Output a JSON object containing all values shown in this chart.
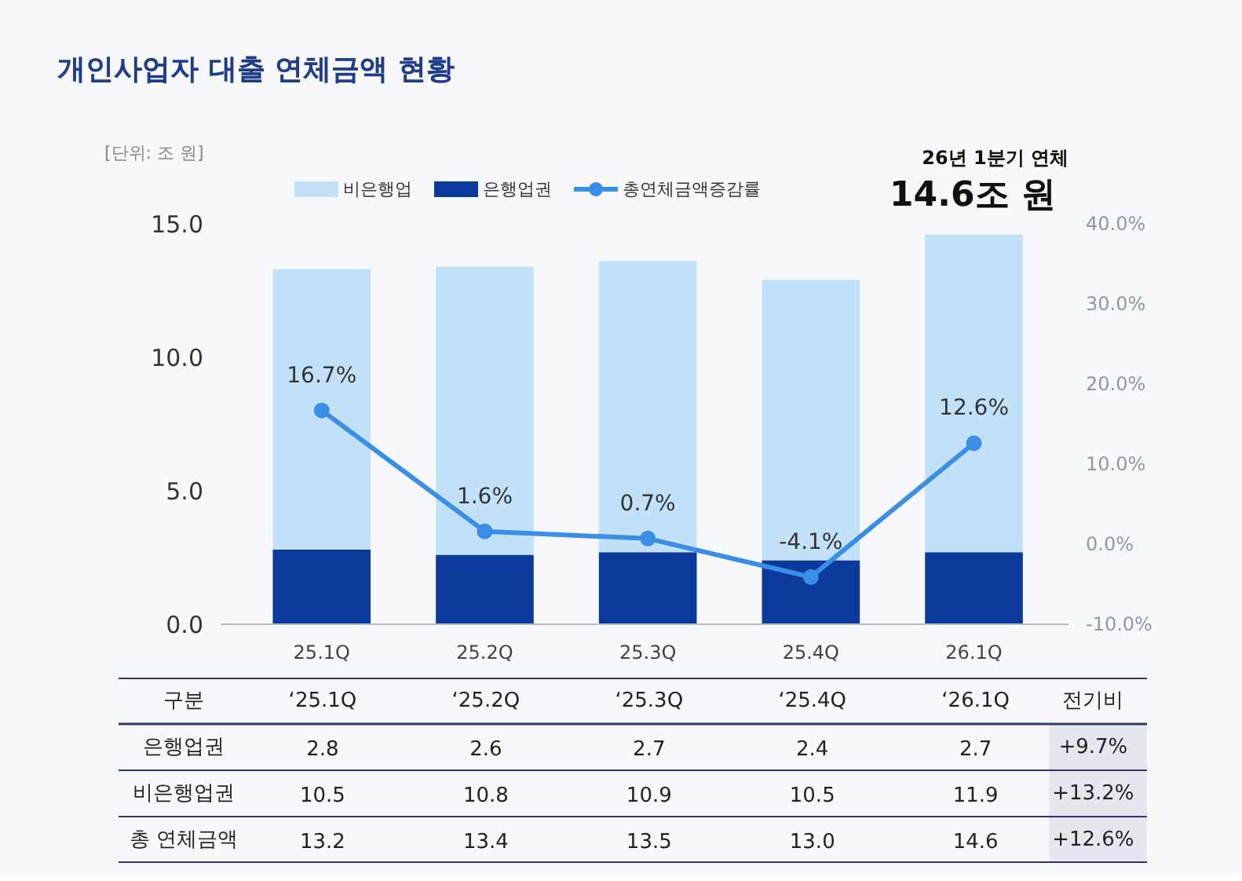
{
  "chart_data": {
    "type": "bar",
    "title": "개인사업자 대출 연체금액 현황",
    "ylabel": "[단위: 조 원]",
    "categories": [
      "25.1Q",
      "25.2Q",
      "25.3Q",
      "25.4Q",
      "26.1Q"
    ],
    "stacked": true,
    "legend": "top",
    "grid": false,
    "data_labels": true,
    "ylim": [
      0,
      15
    ],
    "yticks": [
      {
        "value": 0,
        "label": "0.0"
      },
      {
        "value": 5,
        "label": "5.0"
      },
      {
        "value": 10,
        "label": "10.0"
      },
      {
        "value": 15,
        "label": "15.0"
      }
    ],
    "y2lim": [
      -10,
      40
    ],
    "y2ticks": [
      {
        "value": -10,
        "label": "-10.0%"
      },
      {
        "value": 0,
        "label": "0.0%"
      },
      {
        "value": 10,
        "label": "10.0%"
      },
      {
        "value": 20,
        "label": "20.0%"
      },
      {
        "value": 30,
        "label": "30.0%"
      },
      {
        "value": 40,
        "label": "40.0%"
      }
    ],
    "series": [
      {
        "name": "은행업권",
        "color": "#0b3a9c",
        "values": [
          2.8,
          2.6,
          2.7,
          2.4,
          2.7
        ]
      },
      {
        "name": "비은행업",
        "color": "#c2e1f8",
        "values": [
          10.5,
          10.8,
          10.9,
          10.5,
          11.9
        ]
      },
      {
        "name": "총연체금액증감률",
        "type": "line",
        "axis": "y2",
        "color": "#3a8ee6",
        "marker": "circle",
        "values": [
          16.7,
          1.6,
          0.7,
          -4.1,
          12.6
        ],
        "value_labels": [
          "16.7%",
          "1.6%",
          "0.7%",
          "-4.1%",
          "12.6%"
        ]
      }
    ],
    "annotations": [
      "26년 1분기 연체",
      "14.6조 원",
      "구분",
      "‘25.1Q",
      "‘25.2Q",
      "‘25.3Q",
      "‘25.4Q",
      "‘26.1Q",
      "전기비",
      "은행업권",
      "비은행업권",
      "총 연체금액",
      "+9.7%",
      "+13.2%",
      "+12.6%",
      "13.2",
      "13.4",
      "13.5",
      "13.0",
      "14.6"
    ]
  }
}
